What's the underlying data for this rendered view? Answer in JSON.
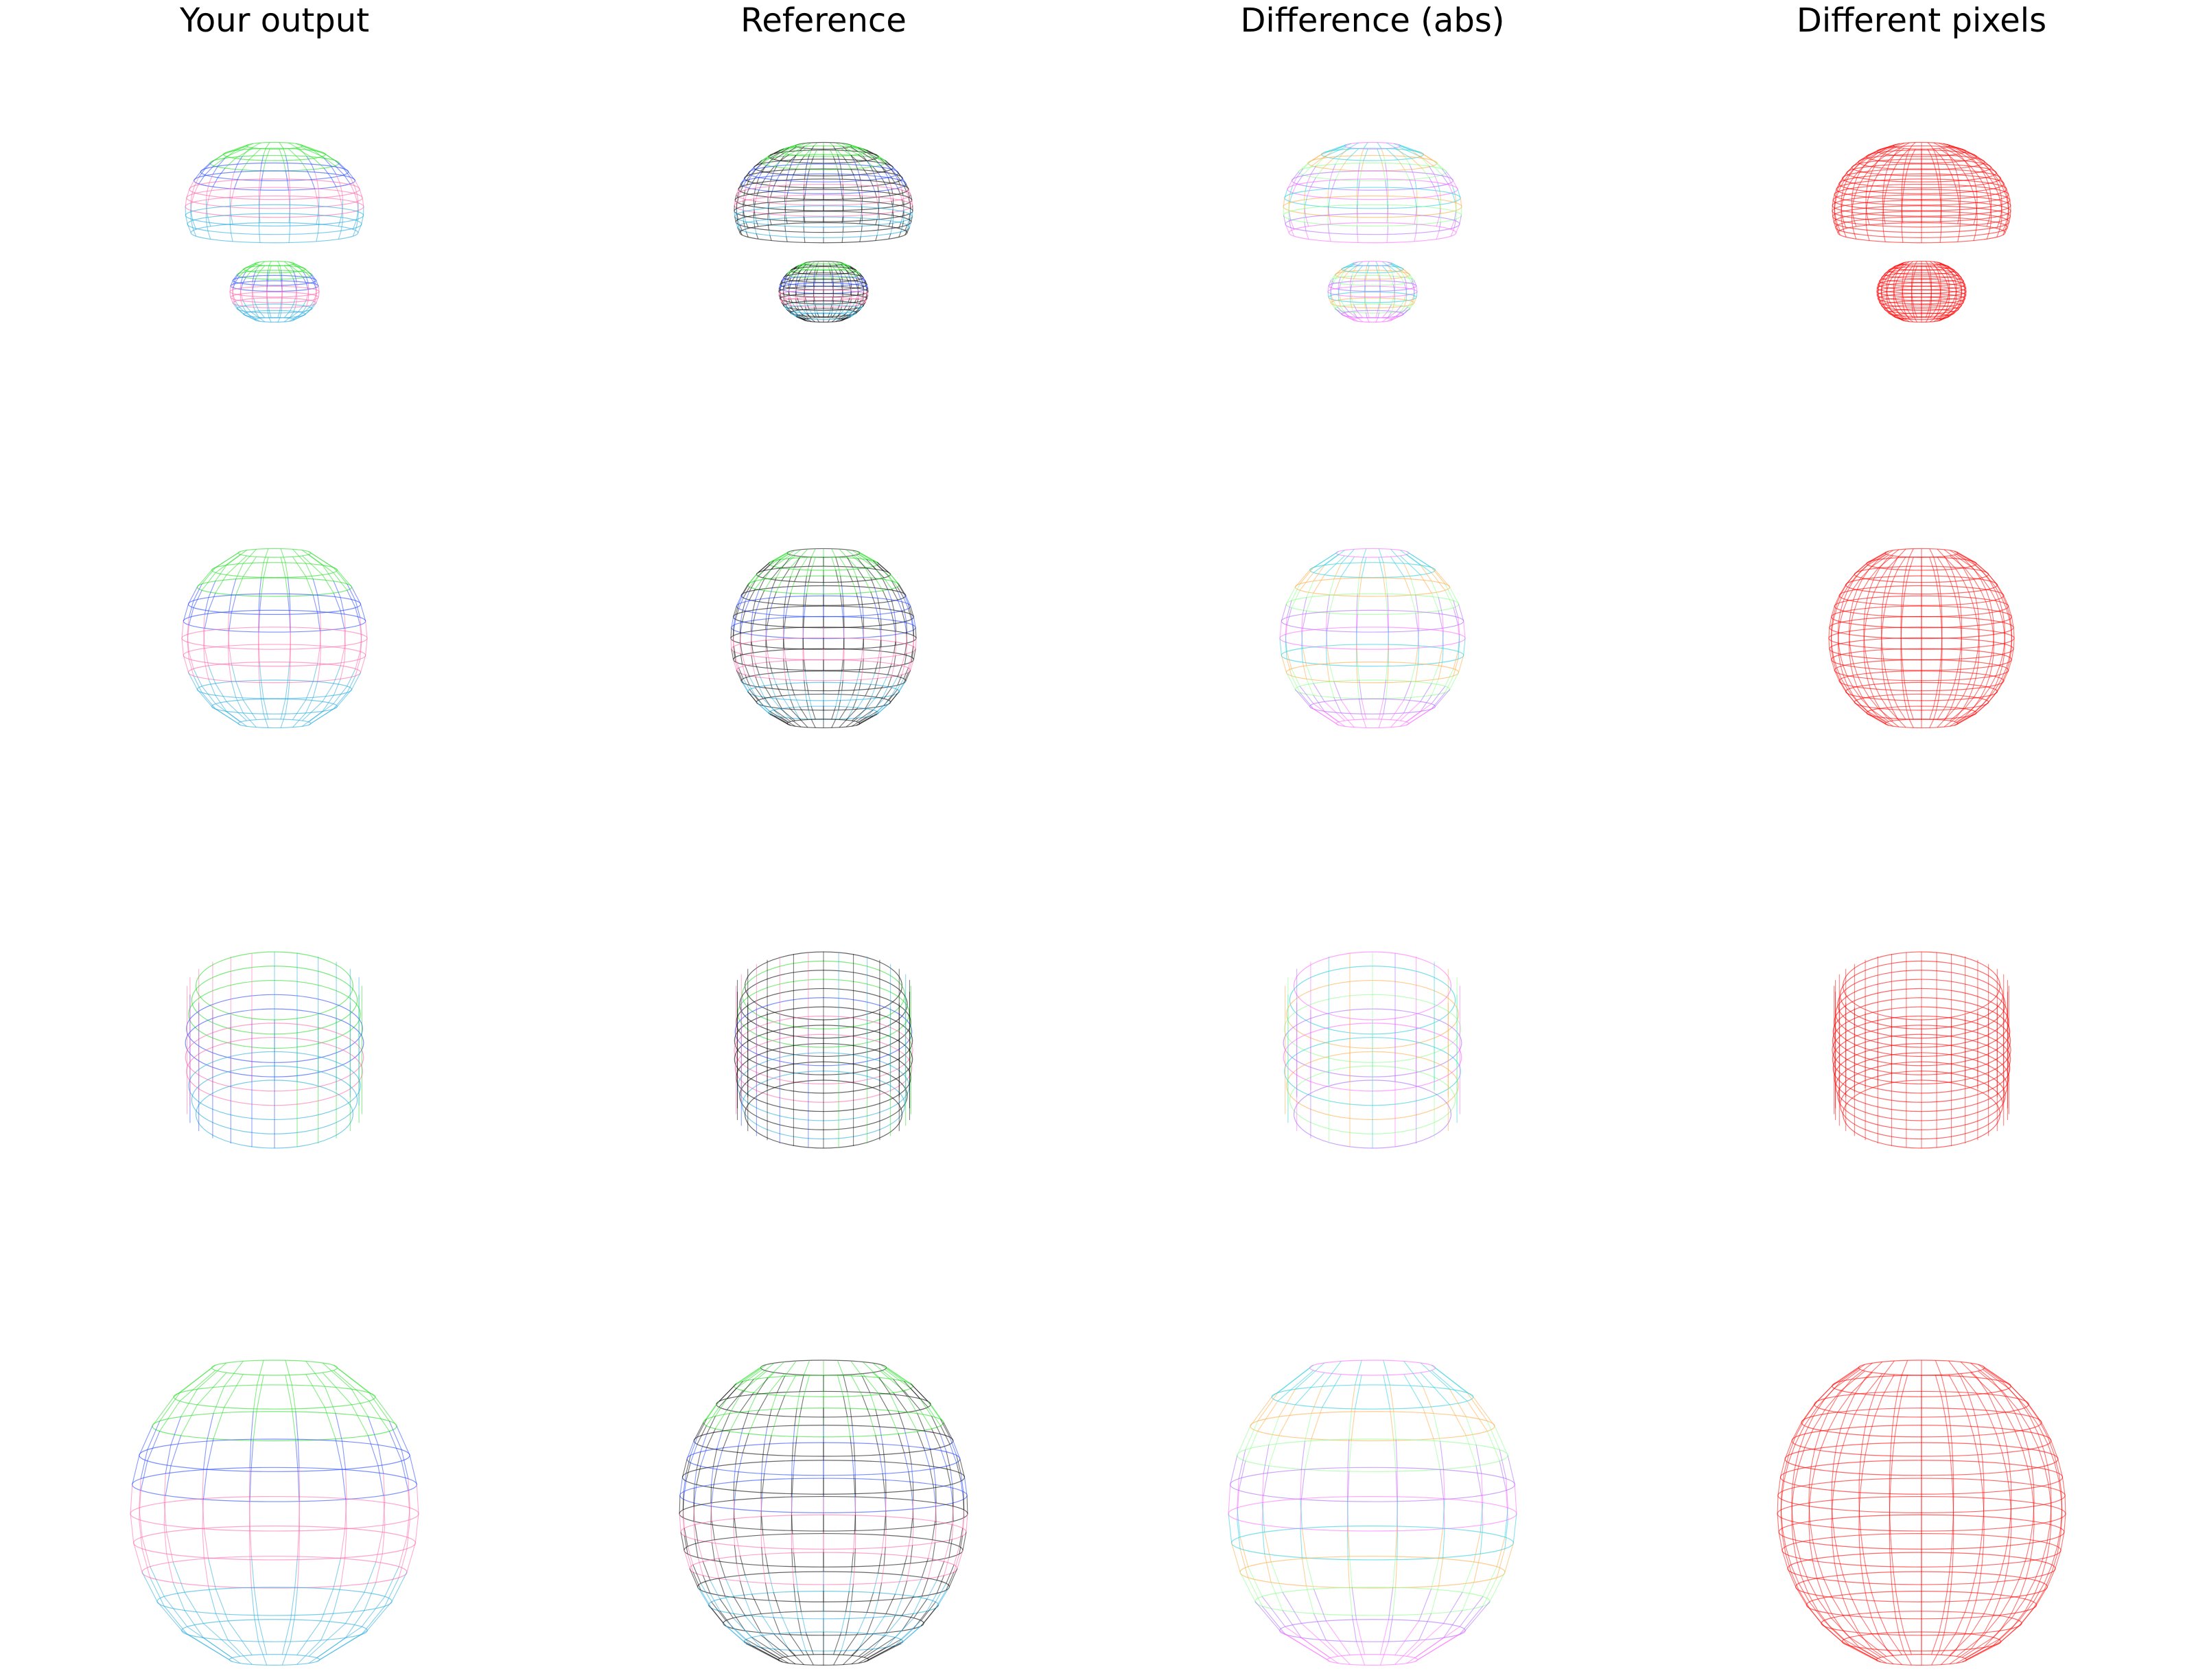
{
  "headers": [
    "Your output",
    "Reference",
    "Difference (abs)",
    "Different pixels"
  ],
  "row_shapes": [
    "mushroom",
    "globe",
    "ring",
    "dome"
  ],
  "panels": [
    {
      "name": "your-output",
      "style": "gradient"
    },
    {
      "name": "reference",
      "style": "gradient-dense-black"
    },
    {
      "name": "difference",
      "style": "pastel"
    },
    {
      "name": "different-pixels",
      "style": "red"
    }
  ],
  "colors": {
    "background": "#ffffff",
    "diff_mask": "#ff0000",
    "reference_edges": "#000000",
    "gradient": [
      "#22dd22",
      "#2244ff",
      "#ff66aa",
      "#22aadd"
    ],
    "pastel": [
      "#ff66ff",
      "#22ccdd",
      "#ffaa44",
      "#88ff88",
      "#aa66ff"
    ]
  }
}
